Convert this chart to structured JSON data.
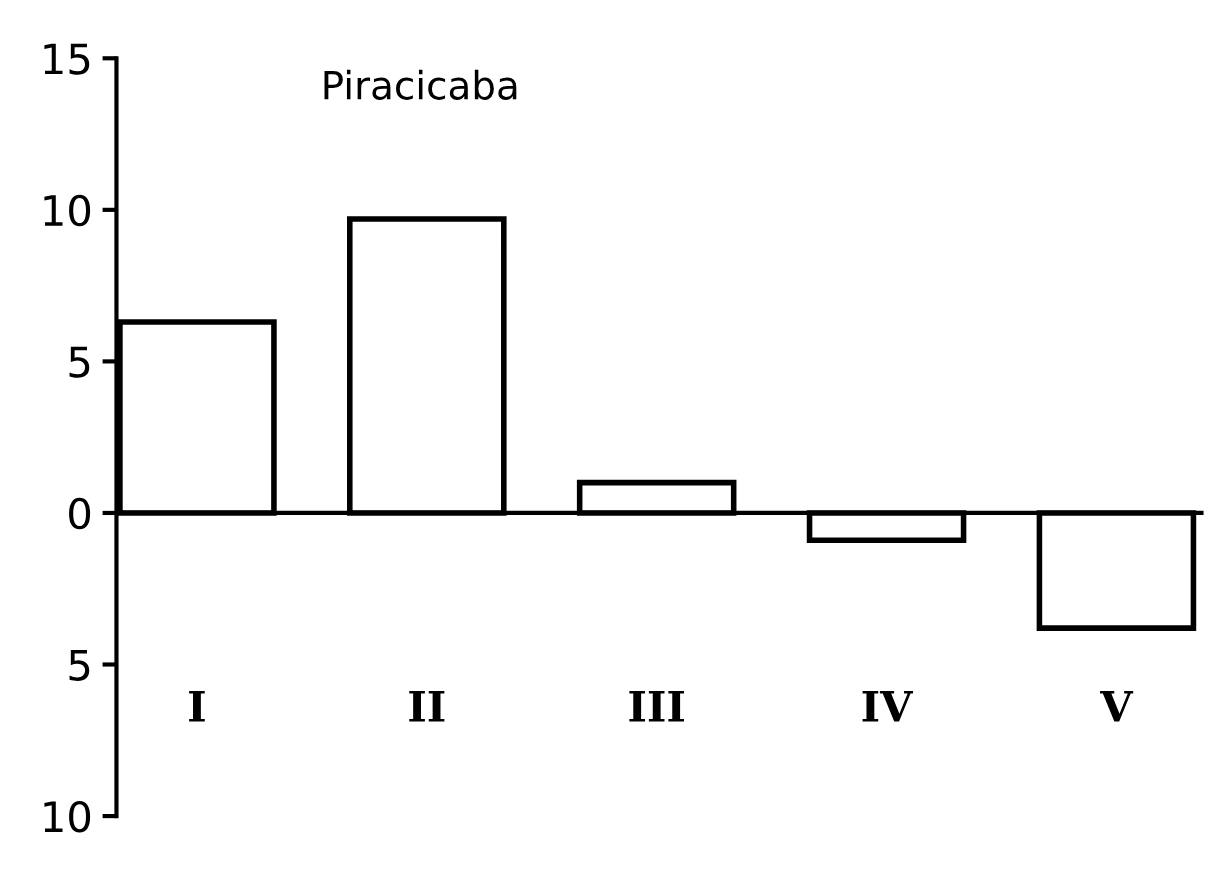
{
  "chart_data": {
    "type": "bar",
    "title": "Piracicaba",
    "categories": [
      "I",
      "II",
      "III",
      "IV",
      "V"
    ],
    "values": [
      6.3,
      9.7,
      1.0,
      -0.9,
      -3.8
    ],
    "color": "#000000",
    "ylim": [
      -10,
      15
    ],
    "yticks": [
      {
        "value": -10,
        "label": "10"
      },
      {
        "value": -5,
        "label": "5"
      },
      0,
      5,
      10,
      15
    ]
  }
}
